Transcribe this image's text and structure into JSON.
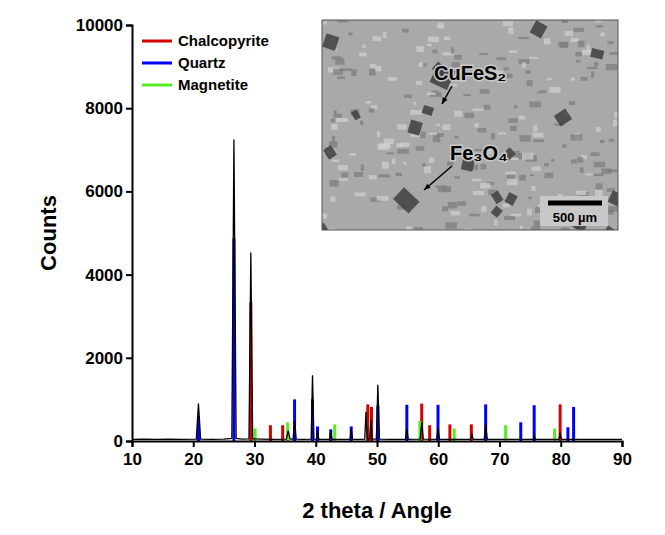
{
  "chart_data": {
    "type": "line",
    "xlabel": "2 theta / Angle",
    "ylabel": "Counts",
    "xlim": [
      10,
      90
    ],
    "ylim": [
      0,
      10000
    ],
    "xticks": [
      10,
      20,
      30,
      40,
      50,
      60,
      70,
      80,
      90
    ],
    "yticks": [
      0,
      2000,
      4000,
      6000,
      8000,
      10000
    ],
    "grid": false,
    "legend": "top-left",
    "series": [
      {
        "type": "line",
        "color": "#000000",
        "x": [
          10,
          12,
          14,
          16,
          18,
          20.5,
          20.85,
          21.2,
          23,
          25,
          26.3,
          26.64,
          27.0,
          28,
          29.1,
          29.4,
          29.7,
          31,
          33,
          35.2,
          35.5,
          35.8,
          36.3,
          36.54,
          36.8,
          38,
          39.25,
          39.47,
          39.7,
          40.1,
          40.3,
          40.5,
          42.25,
          42.45,
          42.65,
          44,
          45.6,
          45.8,
          46,
          47.5,
          48.0,
          48.2,
          48.4,
          48.8,
          49.0,
          49.2,
          49.9,
          50.14,
          50.4,
          52,
          54.65,
          54.87,
          55.1,
          57.05,
          57.3,
          57.55,
          59.75,
          59.96,
          60.2,
          62,
          64,
          65.3,
          65.5,
          65.7,
          67.5,
          67.74,
          68.0,
          70,
          72,
          75.5,
          75.66,
          75.9,
          78,
          79.7,
          79.9,
          80.1,
          82,
          84,
          86,
          88,
          90
        ],
        "values": [
          40,
          45,
          40,
          45,
          40,
          45,
          900,
          45,
          40,
          45,
          60,
          7250,
          60,
          45,
          50,
          4530,
          50,
          45,
          40,
          45,
          250,
          45,
          45,
          500,
          45,
          40,
          45,
          1580,
          45,
          40,
          250,
          40,
          40,
          250,
          40,
          40,
          40,
          280,
          40,
          40,
          45,
          700,
          45,
          45,
          500,
          45,
          45,
          1350,
          45,
          40,
          40,
          300,
          40,
          45,
          450,
          45,
          40,
          330,
          40,
          40,
          40,
          40,
          150,
          40,
          40,
          400,
          40,
          40,
          40,
          40,
          120,
          40,
          40,
          40,
          200,
          40,
          40,
          40,
          40,
          40,
          40
        ]
      },
      {
        "name": "Chalcopyrite",
        "type": "stick",
        "color": "#d40000",
        "x": [
          29.4,
          32.6,
          34.6,
          48.5,
          49.1,
          57.3,
          58.6,
          61.9,
          65.4,
          79.9
        ],
        "values": [
          3330,
          380,
          380,
          880,
          820,
          900,
          380,
          400,
          400,
          880
        ]
      },
      {
        "name": "Quartz",
        "type": "stick",
        "color": "#0000ff",
        "x": [
          20.85,
          26.64,
          36.54,
          39.47,
          40.29,
          42.45,
          45.79,
          50.14,
          54.87,
          59.96,
          67.74,
          73.47,
          75.66,
          81.17,
          82.1
        ],
        "values": [
          600,
          4870,
          1000,
          1000,
          350,
          280,
          350,
          850,
          870,
          870,
          880,
          450,
          860,
          330,
          820
        ]
      },
      {
        "name": "Magnetite",
        "type": "stick",
        "color": "#55ee22",
        "x": [
          30.1,
          35.4,
          43.1,
          57.0,
          62.6,
          71.0,
          79.0
        ],
        "values": [
          300,
          450,
          400,
          480,
          300,
          380,
          300
        ]
      }
    ],
    "annotations": [
      "CuFeS₂",
      "Fe₃O₄",
      "500 µm"
    ]
  }
}
